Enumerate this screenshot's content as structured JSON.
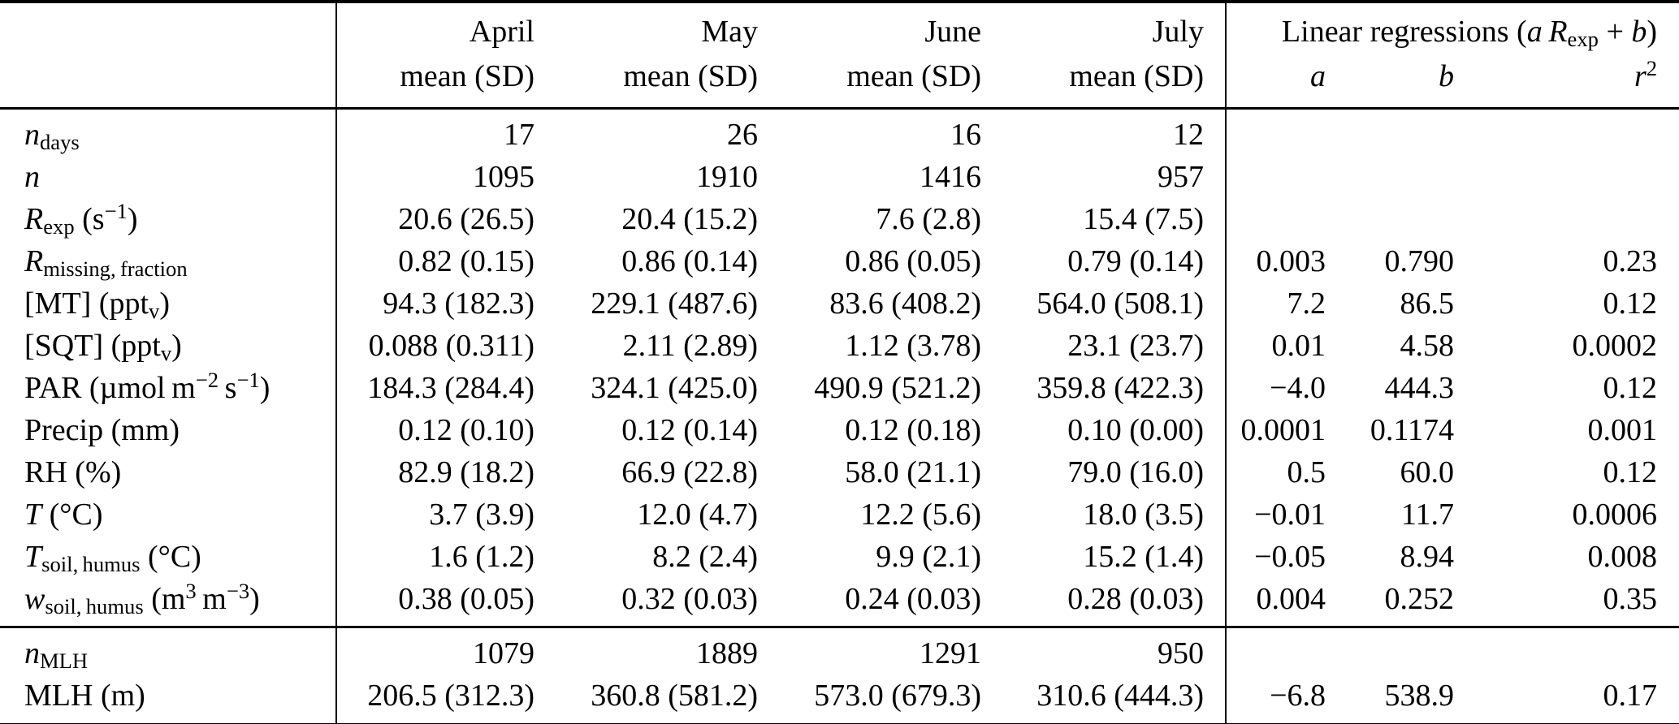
{
  "table": {
    "months": [
      {
        "label": [
          [
            "t",
            "April"
          ]
        ],
        "sub_label": "mean (SD)"
      },
      {
        "label": [
          [
            "t",
            "May"
          ]
        ],
        "sub_label": "mean (SD)"
      },
      {
        "label": [
          [
            "t",
            "June"
          ]
        ],
        "sub_label": "mean (SD)"
      },
      {
        "label": [
          [
            "t",
            "July"
          ]
        ],
        "sub_label": "mean (SD)"
      }
    ],
    "regression": {
      "title": [
        [
          "t",
          "Linear regressions ("
        ],
        [
          "i",
          "a"
        ],
        [
          "t",
          " "
        ],
        [
          "i",
          "R"
        ],
        [
          "sub",
          "exp"
        ],
        [
          "t",
          " + "
        ],
        [
          "i",
          "b"
        ],
        [
          "t",
          ")"
        ]
      ],
      "col_a": [
        [
          "i",
          "a"
        ]
      ],
      "col_b": [
        [
          "i",
          "b"
        ]
      ],
      "col_r2": [
        [
          "i",
          "r"
        ],
        [
          "sup",
          "2"
        ]
      ]
    },
    "sections": {
      "main": [
        {
          "label": [
            [
              "i",
              "n"
            ],
            [
              "sub",
              "days"
            ]
          ],
          "values": [
            "17",
            "26",
            "16",
            "12",
            "",
            "",
            ""
          ]
        },
        {
          "label": [
            [
              "i",
              "n"
            ]
          ],
          "values": [
            "1095",
            "1910",
            "1416",
            "957",
            "",
            "",
            ""
          ]
        },
        {
          "label": [
            [
              "i",
              "R"
            ],
            [
              "sub",
              "exp"
            ],
            [
              "t",
              " (s"
            ],
            [
              "sup",
              "−1"
            ],
            [
              "t",
              ")"
            ]
          ],
          "values": [
            "20.6 (26.5)",
            "20.4 (15.2)",
            "7.6 (2.8)",
            "15.4 (7.5)",
            "",
            "",
            ""
          ]
        },
        {
          "label": [
            [
              "i",
              "R"
            ],
            [
              "sub",
              "missing, fraction"
            ]
          ],
          "values": [
            "0.82 (0.15)",
            "0.86 (0.14)",
            "0.86 (0.05)",
            "0.79 (0.14)",
            "0.003",
            "0.790",
            "0.23"
          ]
        },
        {
          "label": [
            [
              "t",
              "[MT] (ppt"
            ],
            [
              "sub",
              "v"
            ],
            [
              "t",
              ")"
            ]
          ],
          "values": [
            "94.3 (182.3)",
            "229.1 (487.6)",
            "83.6 (408.2)",
            "564.0 (508.1)",
            "7.2",
            "86.5",
            "0.12"
          ]
        },
        {
          "label": [
            [
              "t",
              "[SQT] (ppt"
            ],
            [
              "sub",
              "v"
            ],
            [
              "t",
              ")"
            ]
          ],
          "values": [
            "0.088 (0.311)",
            "2.11 (2.89)",
            "1.12 (3.78)",
            "23.1 (23.7)",
            "0.01",
            "4.58",
            "0.0002"
          ]
        },
        {
          "label": [
            [
              "t",
              "PAR (µmol m"
            ],
            [
              "sup",
              "−2"
            ],
            [
              "t",
              " s"
            ],
            [
              "sup",
              "−1"
            ],
            [
              "t",
              ")"
            ]
          ],
          "values": [
            "184.3 (284.4)",
            "324.1 (425.0)",
            "490.9 (521.2)",
            "359.8 (422.3)",
            "−4.0",
            "444.3",
            "0.12"
          ]
        },
        {
          "label": [
            [
              "t",
              "Precip (mm)"
            ]
          ],
          "values": [
            "0.12 (0.10)",
            "0.12 (0.14)",
            "0.12 (0.18)",
            "0.10 (0.00)",
            "0.0001",
            "0.1174",
            "0.001"
          ]
        },
        {
          "label": [
            [
              "t",
              "RH (%)"
            ]
          ],
          "values": [
            "82.9 (18.2)",
            "66.9 (22.8)",
            "58.0 (21.1)",
            "79.0 (16.0)",
            "0.5",
            "60.0",
            "0.12"
          ]
        },
        {
          "label": [
            [
              "i",
              "T"
            ],
            [
              "t",
              " (°C)"
            ]
          ],
          "values": [
            "3.7 (3.9)",
            "12.0 (4.7)",
            "12.2 (5.6)",
            "18.0 (3.5)",
            "−0.01",
            "11.7",
            "0.0006"
          ]
        },
        {
          "label": [
            [
              "i",
              "T"
            ],
            [
              "sub",
              "soil, humus"
            ],
            [
              "t",
              " (°C)"
            ]
          ],
          "values": [
            "1.6 (1.2)",
            "8.2 (2.4)",
            "9.9 (2.1)",
            "15.2 (1.4)",
            "−0.05",
            "8.94",
            "0.008"
          ]
        },
        {
          "label": [
            [
              "i",
              "w"
            ],
            [
              "sub",
              "soil, humus"
            ],
            [
              "t",
              " (m"
            ],
            [
              "sup",
              "3"
            ],
            [
              "t",
              " m"
            ],
            [
              "sup",
              "−3"
            ],
            [
              "t",
              ")"
            ]
          ],
          "values": [
            "0.38 (0.05)",
            "0.32 (0.03)",
            "0.24 (0.03)",
            "0.28 (0.03)",
            "0.004",
            "0.252",
            "0.35"
          ]
        }
      ],
      "mlh": [
        {
          "label": [
            [
              "i",
              "n"
            ],
            [
              "sub",
              "MLH"
            ]
          ],
          "values": [
            "1079",
            "1889",
            "1291",
            "950",
            "",
            "",
            ""
          ]
        },
        {
          "label": [
            [
              "t",
              "MLH (m)"
            ]
          ],
          "values": [
            "206.5 (312.3)",
            "360.8 (581.2)",
            "573.0 (679.3)",
            "310.6 (444.3)",
            "−6.8",
            "538.9",
            "0.17"
          ]
        }
      ]
    }
  }
}
